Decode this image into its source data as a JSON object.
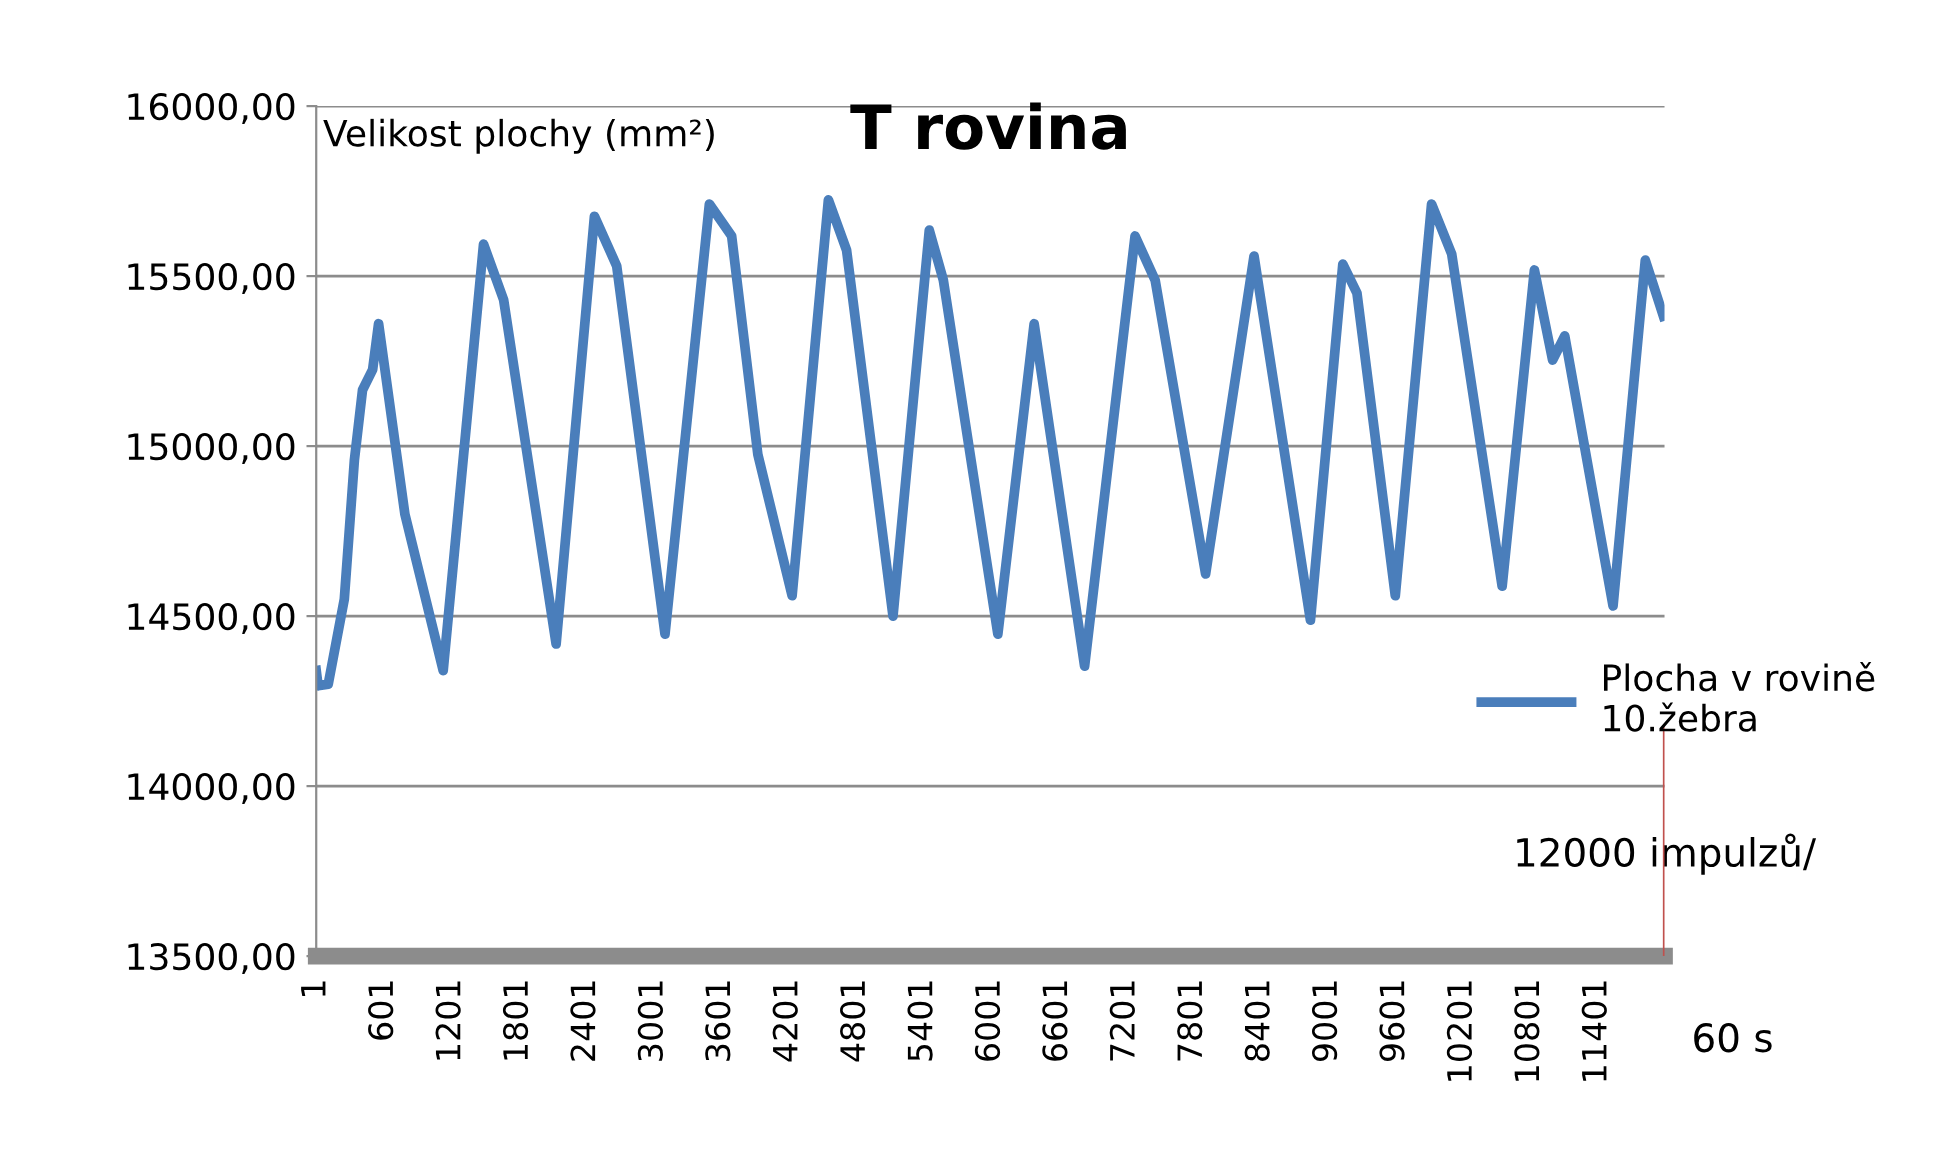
{
  "chart_data": {
    "type": "line",
    "title": "T rovina",
    "ylabel": "Velikost plochy (mm²)",
    "x": [
      1,
      18,
      108,
      251,
      341,
      413,
      503,
      556,
      790,
      1131,
      1490,
      1669,
      2136,
      2477,
      2675,
      3105,
      3500,
      3698,
      3931,
      4236,
      4559,
      4721,
      5134,
      5457,
      5582,
      6067,
      6390,
      6839,
      7288,
      7467,
      7916,
      8347,
      8849,
      9137,
      9263,
      9604,
      9927,
      10106,
      10555,
      10842,
      11004,
      11112,
      11542,
      11829,
      11990
    ],
    "series": [
      {
        "name": "Plocha v rovině\n10.žebra",
        "color": "#4a7ebb",
        "values": [
          14340,
          14295,
          14300,
          14550,
          14960,
          15165,
          15225,
          15360,
          14800,
          14340,
          15594,
          15430,
          14418,
          15676,
          15530,
          14447,
          15712,
          15618,
          14976,
          14560,
          15724,
          15576,
          14500,
          15635,
          15488,
          14447,
          15360,
          14353,
          15618,
          15488,
          14624,
          15559,
          14488,
          15535,
          15450,
          14560,
          15712,
          15565,
          14588,
          15518,
          15253,
          15324,
          14530,
          15547,
          15382
        ]
      }
    ],
    "xlim": [
      1,
      12000
    ],
    "xticks": [
      1,
      601,
      1201,
      1801,
      2401,
      3001,
      3601,
      4201,
      4801,
      5401,
      6001,
      6601,
      7201,
      7801,
      8401,
      9001,
      9601,
      10201,
      10801,
      11401
    ],
    "ylim": [
      13500,
      16000
    ],
    "yticks": [
      {
        "value": 13500,
        "label": "13500,00"
      },
      {
        "value": 14000,
        "label": "14000,00"
      },
      {
        "value": 14500,
        "label": "14500,00"
      },
      {
        "value": 15000,
        "label": "15000,00"
      },
      {
        "value": 15500,
        "label": "15500,00"
      },
      {
        "value": 16000,
        "label": "16000,00"
      }
    ],
    "grid": "y",
    "legend": "right",
    "marker": "none",
    "line_style": "solid",
    "ref_lines": [
      {
        "axis": "x",
        "value": 12000,
        "color": "#c0504d"
      }
    ],
    "annotations": [
      "12000 impulzů/",
      "60 s"
    ]
  }
}
